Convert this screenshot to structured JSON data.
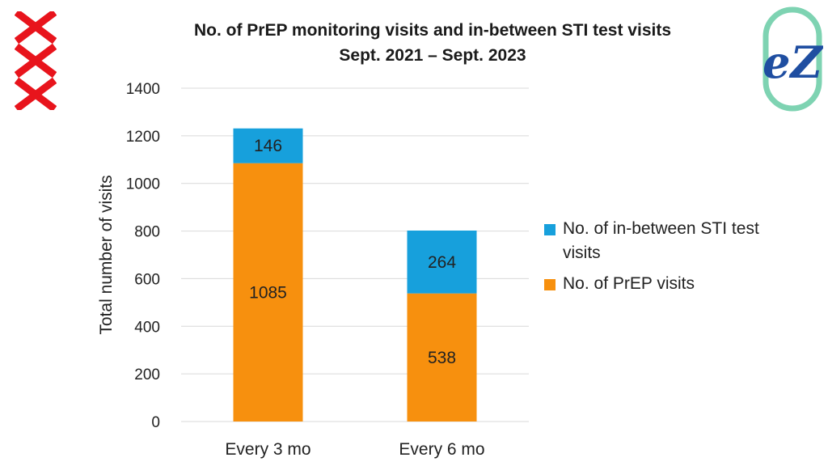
{
  "title_line1": "No. of PrEP monitoring visits and in-between STI test visits",
  "title_line2": "Sept. 2021 – Sept. 2023",
  "colors": {
    "prep": "#F7900E",
    "sti": "#17A0DC",
    "grid": "#D9D9D9",
    "logo_red": "#E8141C",
    "logo_green": "#7ED3B2",
    "logo_blue": "#1F4EA1"
  },
  "logo_right_text": "eZ",
  "chart_data": {
    "type": "bar",
    "stacked": true,
    "categories": [
      "Every 3 mo",
      "Every 6 mo"
    ],
    "series": [
      {
        "name": "No. of PrEP visits",
        "values": [
          1085,
          538
        ]
      },
      {
        "name": "No. of in-between STI test visits",
        "values": [
          146,
          264
        ]
      }
    ],
    "ylabel": "Total number of visits",
    "xlabel": "",
    "ylim": [
      0,
      1400
    ],
    "yticks": [
      "0",
      "200",
      "400",
      "600",
      "800",
      "1000",
      "1200",
      "1400"
    ],
    "grid": true,
    "legend_position": "right"
  }
}
